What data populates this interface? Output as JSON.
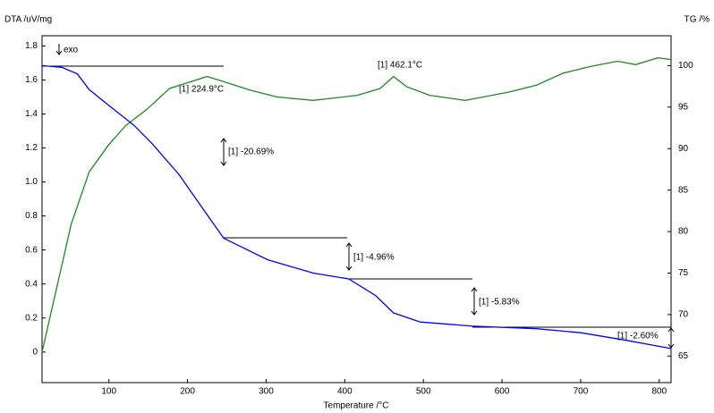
{
  "chart_data": {
    "type": "line",
    "ylabel": "DTA /uV/mg",
    "y2label": "TG /%",
    "xlabel": "Temperature /°C",
    "xlim": [
      15,
      815
    ],
    "xticks": [
      100,
      200,
      300,
      400,
      500,
      600,
      700,
      800
    ],
    "ylim": [
      -0.18,
      1.86
    ],
    "yticks": [
      0,
      0.2,
      0.4,
      0.6,
      0.8,
      {
        "value": 1,
        "label": "1.0"
      },
      1.2,
      1.4,
      1.6,
      1.8
    ],
    "y2lim": [
      61.8,
      103.6
    ],
    "y2ticks": [
      65,
      70,
      75,
      80,
      85,
      90,
      95,
      100
    ],
    "series": [
      {
        "name": "DTA",
        "color": "#1e8a1e",
        "x": [
          15,
          52,
          75,
          100,
          121,
          149,
          177,
          225,
          246,
          280,
          314,
          360,
          416,
          445,
          462,
          479,
          508,
          553,
          576,
          610,
          644,
          678,
          713,
          747,
          770,
          798,
          815
        ],
        "values": [
          0,
          0.75,
          1.06,
          1.22,
          1.33,
          1.43,
          1.55,
          1.62,
          1.59,
          1.54,
          1.5,
          1.48,
          1.51,
          1.55,
          1.62,
          1.56,
          1.51,
          1.48,
          1.5,
          1.53,
          1.57,
          1.64,
          1.68,
          1.71,
          1.69,
          1.73,
          1.72
        ]
      },
      {
        "name": "TG",
        "color": "#0000ff",
        "axis": "y2",
        "x": [
          15,
          40,
          60,
          75,
          100,
          132,
          155,
          189,
          217,
          246,
          302,
          360,
          405,
          439,
          462,
          496,
          564,
          644,
          701,
          758,
          815
        ],
        "values": [
          100,
          99.8,
          99,
          97.1,
          95.2,
          92.8,
          90.6,
          86.9,
          83.1,
          79.2,
          76.6,
          75,
          74.3,
          72.3,
          70.2,
          69.1,
          68.6,
          68.3,
          67.8,
          66.9,
          65.9
        ]
      }
    ],
    "annotations": [
      "exo",
      "[1] 224.9°C",
      "[1] 462.1°C",
      "[1] -20.69%",
      "[1] -4.96%",
      "[1] -5.83%",
      "[1] -2.60%"
    ]
  }
}
